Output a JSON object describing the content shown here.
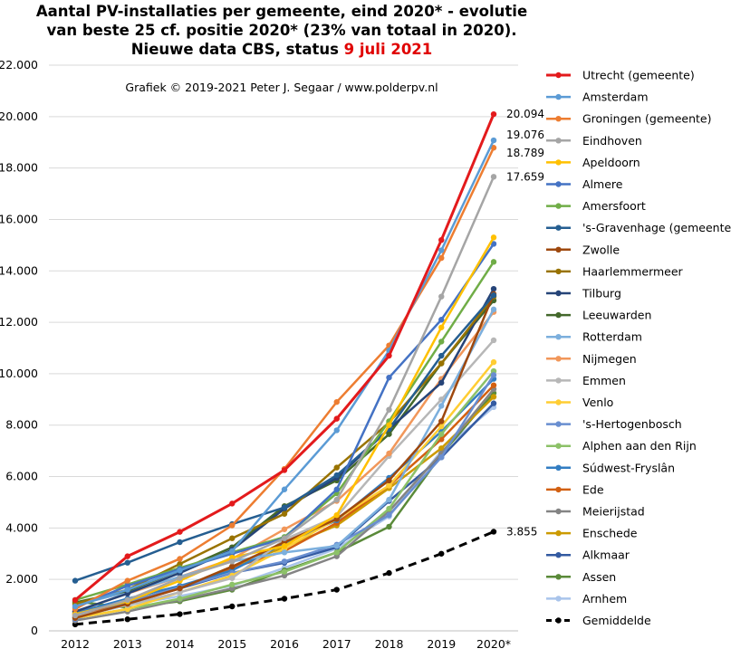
{
  "chart_data": {
    "type": "line",
    "title_lines": [
      "Aantal PV-installaties  per gemeente, eind 2020* - evolutie",
      "van beste 25 cf. positie  2020* (23% van totaal in 2020).",
      "Nieuwe data CBS, status "
    ],
    "title_highlight": "9 juli  2021",
    "credit": "Grafiek  © 2019-2021 Peter J. Segaar / www.polderpv.nl",
    "categories": [
      "2012",
      "2013",
      "2014",
      "2015",
      "2016",
      "2017",
      "2018",
      "2019",
      "2020*"
    ],
    "ylim": [
      0,
      22000
    ],
    "yticks": [
      0,
      2000,
      4000,
      6000,
      8000,
      10000,
      12000,
      14000,
      16000,
      18000,
      20000,
      22000
    ],
    "ytick_labels": [
      "0",
      "2.000",
      "4.000",
      "6.000",
      "8.000",
      "10.000",
      "12.000",
      "14.000",
      "16.000",
      "18.000",
      "20.000",
      "22.000"
    ],
    "grid": true,
    "legend_position": "right",
    "end_labels": [
      {
        "series": "Utrecht (gemeente)",
        "text": "20.094"
      },
      {
        "series": "Amsterdam",
        "text": "19.076"
      },
      {
        "series": "Groningen (gemeente)",
        "text": "18.789"
      },
      {
        "series": "Eindhoven",
        "text": "17.659"
      },
      {
        "series": "Gemiddelde",
        "text": "3.855"
      }
    ],
    "series": [
      {
        "name": "Utrecht (gemeente)",
        "color": "#e31a1c",
        "width": 3,
        "values": [
          1200,
          2900,
          3850,
          4950,
          6250,
          8250,
          10700,
          15200,
          20094
        ]
      },
      {
        "name": "Amsterdam",
        "color": "#5b9bd5",
        "width": 2.5,
        "values": [
          950,
          1600,
          2350,
          3100,
          5500,
          7800,
          10900,
          14800,
          19076
        ]
      },
      {
        "name": "Groningen (gemeente)",
        "color": "#ed7d31",
        "width": 2.5,
        "values": [
          850,
          1950,
          2800,
          4100,
          6300,
          8900,
          11100,
          14500,
          18789
        ]
      },
      {
        "name": "Eindhoven",
        "color": "#a5a5a5",
        "width": 2.5,
        "values": [
          600,
          1200,
          2050,
          2700,
          3600,
          5100,
          8600,
          13000,
          17659
        ]
      },
      {
        "name": "Apeldoorn",
        "color": "#ffc000",
        "width": 2.5,
        "values": [
          650,
          1150,
          1950,
          2850,
          3300,
          4500,
          8000,
          11800,
          15300
        ]
      },
      {
        "name": "Almere",
        "color": "#4472c4",
        "width": 2.5,
        "values": [
          900,
          1750,
          2400,
          3000,
          3600,
          5500,
          9850,
          12100,
          15050
        ]
      },
      {
        "name": "Amersfoort",
        "color": "#70ad47",
        "width": 2.5,
        "values": [
          1200,
          1800,
          2450,
          3050,
          3650,
          5350,
          8150,
          11250,
          14350
        ]
      },
      {
        "name": "'s-Gravenhage (gemeente)",
        "color": "#255e91",
        "width": 2.5,
        "values": [
          1950,
          2650,
          3450,
          4150,
          4800,
          6050,
          7850,
          10700,
          13050
        ]
      },
      {
        "name": "Zwolle",
        "color": "#9e480e",
        "width": 2.5,
        "values": [
          500,
          1050,
          1650,
          2500,
          3450,
          4350,
          5850,
          8150,
          13100
        ]
      },
      {
        "name": "Haarlemmermeer",
        "color": "#997300",
        "width": 2.5,
        "values": [
          1050,
          1600,
          2600,
          3600,
          4550,
          6350,
          8100,
          10400,
          13000
        ]
      },
      {
        "name": "Tilburg",
        "color": "#264478",
        "width": 2.5,
        "values": [
          750,
          1450,
          2250,
          3150,
          4750,
          5950,
          7850,
          9650,
          13300
        ]
      },
      {
        "name": "Leeuwarden",
        "color": "#43682b",
        "width": 2.5,
        "values": [
          1100,
          1550,
          2350,
          3250,
          4850,
          5850,
          7650,
          10400,
          12850
        ]
      },
      {
        "name": "Rotterdam",
        "color": "#7cafdd",
        "width": 2.5,
        "values": [
          1000,
          1500,
          2100,
          2700,
          3050,
          3300,
          5100,
          8750,
          12500
        ]
      },
      {
        "name": "Nijmegen",
        "color": "#f1975a",
        "width": 2.5,
        "values": [
          750,
          1450,
          2100,
          2800,
          3950,
          5050,
          6900,
          9800,
          12400
        ]
      },
      {
        "name": "Emmen",
        "color": "#b7b7b7",
        "width": 2.5,
        "values": [
          550,
          1000,
          1500,
          2050,
          3550,
          4450,
          6800,
          9000,
          11300
        ]
      },
      {
        "name": "Venlo",
        "color": "#ffcd33",
        "width": 2.5,
        "values": [
          500,
          850,
          1500,
          2150,
          3200,
          4350,
          5650,
          7950,
          10450
        ]
      },
      {
        "name": "'s-Hertogenbosch",
        "color": "#698ed0",
        "width": 2.5,
        "values": [
          450,
          1100,
          1700,
          2250,
          2700,
          3350,
          4500,
          6750,
          9950
        ]
      },
      {
        "name": "Alphen aan den Rijn",
        "color": "#8cc168",
        "width": 2.5,
        "values": [
          500,
          850,
          1250,
          1800,
          2300,
          3050,
          4750,
          7650,
          10100
        ]
      },
      {
        "name": "Súdwest-Fryslân",
        "color": "#327dc2",
        "width": 2.5,
        "values": [
          700,
          1250,
          1750,
          2350,
          3400,
          4300,
          5950,
          7750,
          9800
        ]
      },
      {
        "name": "Ede",
        "color": "#d26012",
        "width": 2.5,
        "values": [
          600,
          1050,
          1650,
          2450,
          3100,
          4200,
          5650,
          7450,
          9550
        ]
      },
      {
        "name": "Meierijstad",
        "color": "#848484",
        "width": 2.5,
        "values": [
          400,
          750,
          1200,
          1650,
          2150,
          2900,
          4650,
          6900,
          9400
        ]
      },
      {
        "name": "Enschede",
        "color": "#cc9a00",
        "width": 2.5,
        "values": [
          650,
          1150,
          1650,
          2500,
          3250,
          4100,
          5550,
          7100,
          9100
        ]
      },
      {
        "name": "Alkmaar",
        "color": "#335aa1",
        "width": 2.5,
        "values": [
          550,
          1150,
          1650,
          2250,
          2650,
          3250,
          5050,
          6750,
          8850
        ]
      },
      {
        "name": "Assen",
        "color": "#5a8a39",
        "width": 2.5,
        "values": [
          1150,
          900,
          1150,
          1600,
          2350,
          3050,
          4050,
          6850,
          9250
        ]
      },
      {
        "name": "Arnhem",
        "color": "#a9c4eb",
        "width": 2.5,
        "values": [
          550,
          1000,
          1350,
          1750,
          2450,
          3200,
          4450,
          7000,
          8700
        ]
      },
      {
        "name": "Gemiddelde",
        "color": "#000000",
        "width": 3,
        "dashed": true,
        "values": [
          250,
          450,
          650,
          950,
          1250,
          1600,
          2250,
          3000,
          3855
        ]
      }
    ]
  }
}
